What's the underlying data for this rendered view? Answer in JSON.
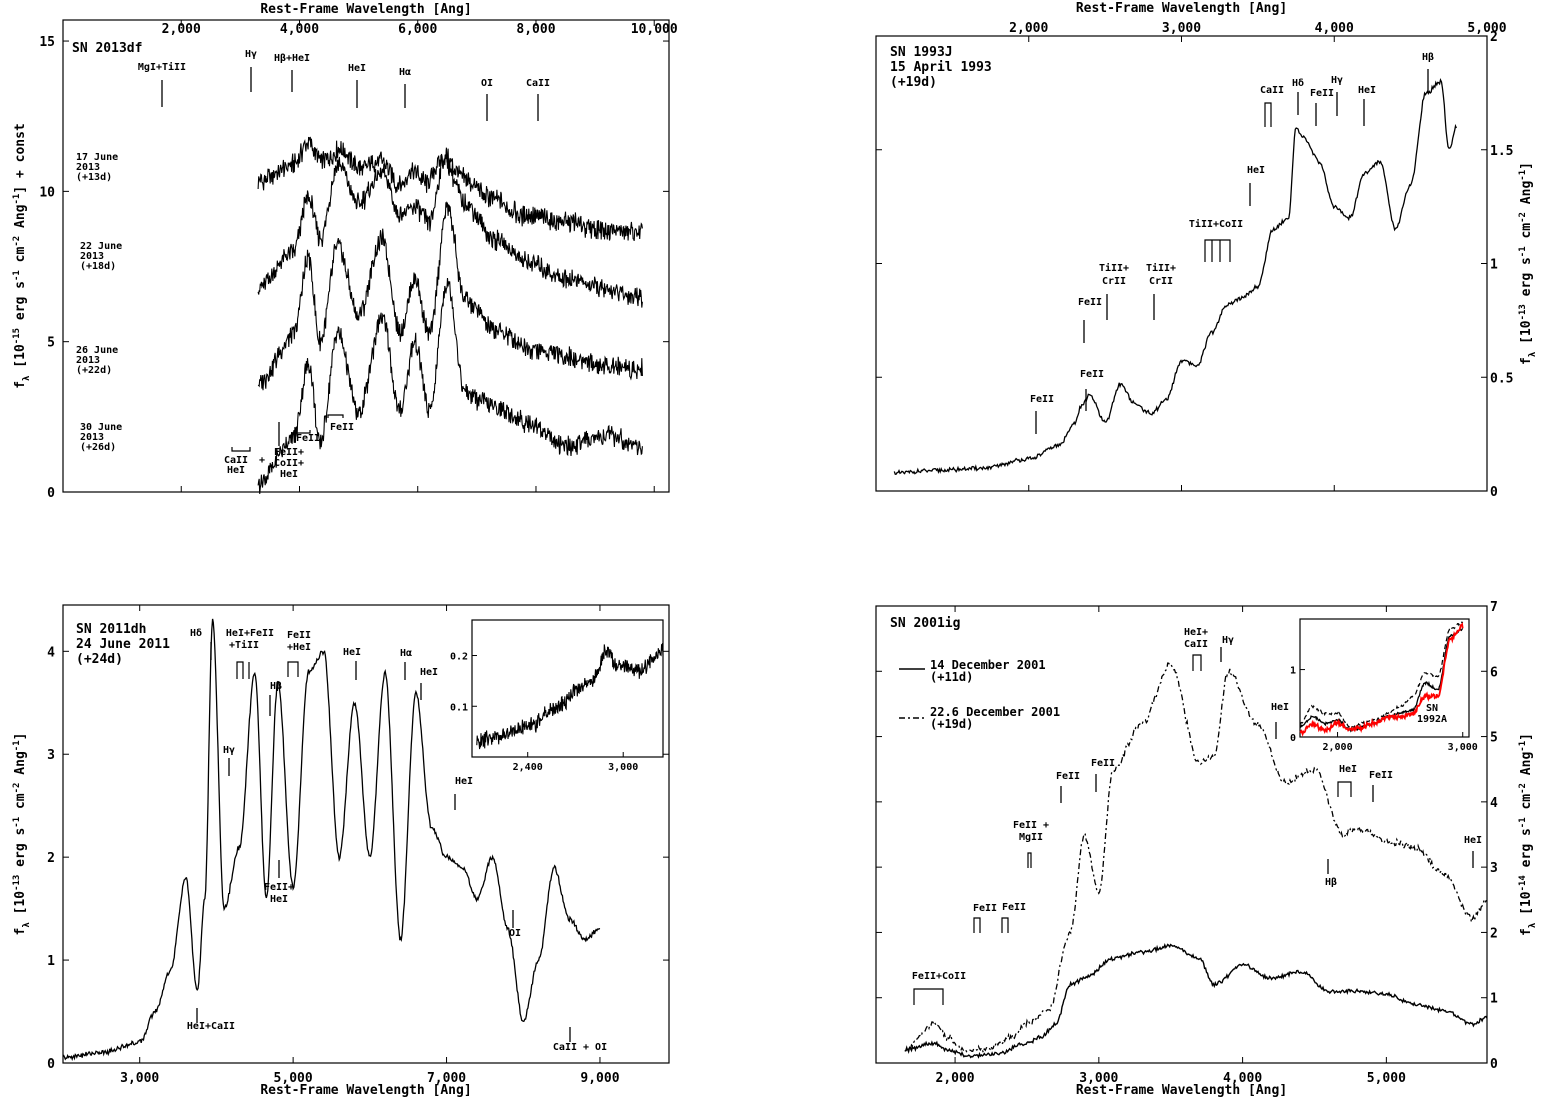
{
  "chart_data": [
    {
      "type": "line",
      "panel": "top-left",
      "label": "SN 2013df",
      "xlabel": "Rest-Frame Wavelength [Ang]",
      "ylabel": "f_λ [10^-15 erg s^-1 cm^-2 Ang^-1] + const",
      "xlim": [
        0,
        10250
      ],
      "ylim": [
        0,
        15.7
      ],
      "xtick_values": [
        2000,
        4000,
        6000,
        8000,
        10000
      ],
      "xtick_labels": [
        "2,000",
        "4,000",
        "6,000",
        "8,000",
        "10,000"
      ],
      "ytick_values": [
        0,
        5,
        10,
        15
      ],
      "ytick_labels": [
        "0",
        "5",
        "10",
        "15"
      ],
      "series": [
        {
          "name": "17 June 2013 (+13d)",
          "offset": 9.5,
          "x": [
            3300,
            3900,
            4150,
            4350,
            4700,
            5000,
            5400,
            5700,
            5900,
            6150,
            6450,
            6800,
            7200,
            7800,
            8500,
            9200,
            9800
          ],
          "y": [
            0.8,
            1.4,
            2.1,
            1.5,
            1.9,
            1.3,
            1.5,
            0.7,
            1.2,
            0.8,
            1.6,
            0.9,
            0.3,
            -0.3,
            -0.5,
            -0.8,
            -0.9
          ]
        },
        {
          "name": "22 June 2013 (+18d)",
          "offset": 6.0,
          "x": [
            3300,
            3900,
            4150,
            4350,
            4650,
            5000,
            5400,
            5700,
            5950,
            6200,
            6450,
            6800,
            7300,
            7900,
            8500,
            9200,
            9800
          ],
          "y": [
            0.8,
            2.0,
            3.8,
            2.4,
            4.9,
            3.6,
            4.6,
            3.2,
            3.5,
            3.0,
            5.1,
            3.6,
            2.4,
            1.6,
            1.1,
            0.7,
            0.5
          ]
        },
        {
          "name": "26 June 2013 (+22d)",
          "offset": 3.0,
          "x": [
            3300,
            3900,
            4150,
            4350,
            4650,
            5000,
            5400,
            5700,
            5950,
            6200,
            6500,
            6800,
            7300,
            7900,
            8500,
            9200,
            9800
          ],
          "y": [
            0.6,
            2.2,
            4.8,
            2.0,
            5.2,
            2.9,
            5.4,
            2.3,
            4.1,
            2.2,
            6.5,
            3.4,
            2.4,
            1.8,
            1.5,
            1.2,
            1.1
          ]
        },
        {
          "name": "30 June 2013 (+26d)",
          "offset": 0.0,
          "x": [
            3300,
            3900,
            4150,
            4350,
            4650,
            5000,
            5400,
            5700,
            5950,
            6200,
            6500,
            6800,
            7300,
            7900,
            8500,
            9200,
            9800
          ],
          "y": [
            0.3,
            1.8,
            4.3,
            1.6,
            5.3,
            2.6,
            5.8,
            2.7,
            5.0,
            2.7,
            7.0,
            3.3,
            2.8,
            2.3,
            1.5,
            1.9,
            1.5
          ]
        }
      ],
      "annotations": [
        "MgI+TiII",
        "Hγ",
        "Hβ+HeI",
        "HeI",
        "Hα",
        "OI",
        "CaII",
        "CaII HeI",
        "+",
        "FeII+ CoII+ HeI",
        "FeII",
        "FeII"
      ],
      "series_labels": [
        [
          "17 June",
          "2013",
          "(+13d)"
        ],
        [
          "22 June",
          "2013",
          "(+18d)"
        ],
        [
          "26 June",
          "2013",
          "(+22d)"
        ],
        [
          "30 June",
          "2013",
          "(+26d)"
        ]
      ]
    },
    {
      "type": "line",
      "panel": "top-right",
      "label": [
        "SN 1993J",
        "15 April 1993",
        "(+19d)"
      ],
      "xlabel": "Rest-Frame Wavelength [Ang]",
      "ylabel": "f_λ [10^-13 erg s^-1 cm^-2 Ang^-1]",
      "xlim": [
        1000,
        5000
      ],
      "ylim": [
        0,
        2.0
      ],
      "xtick_values": [
        2000,
        3000,
        4000,
        5000
      ],
      "xtick_labels": [
        "2,000",
        "3,000",
        "4,000",
        "5,000"
      ],
      "ytick_values": [
        0,
        0.5,
        1,
        1.5,
        2
      ],
      "ytick_labels": [
        "0",
        "0.5",
        "1",
        "1.5",
        "2"
      ],
      "series": [
        {
          "name": "15 April 1993",
          "x": [
            1120,
            1400,
            1700,
            2000,
            2200,
            2300,
            2350,
            2400,
            2500,
            2600,
            2700,
            2800,
            2900,
            3000,
            3100,
            3200,
            3300,
            3400,
            3500,
            3600,
            3700,
            3750,
            3800,
            3900,
            4000,
            4100,
            4200,
            4300,
            4400,
            4500,
            4600,
            4700,
            4750,
            4800
          ],
          "y": [
            0.08,
            0.09,
            0.1,
            0.14,
            0.2,
            0.3,
            0.38,
            0.42,
            0.3,
            0.47,
            0.38,
            0.34,
            0.4,
            0.57,
            0.55,
            0.7,
            0.82,
            0.85,
            0.9,
            1.15,
            1.2,
            1.6,
            1.55,
            1.45,
            1.25,
            1.2,
            1.4,
            1.45,
            1.15,
            1.35,
            1.75,
            1.8,
            1.5,
            1.6
          ]
        }
      ],
      "annotations": [
        "FeII",
        "FeII",
        "FeII",
        "TiII+ CrII",
        "TiII+ CrII",
        "TiII+CoII",
        "HeI",
        "CaII",
        "Hδ",
        "FeII",
        "Hγ",
        "HeI",
        "Hβ"
      ]
    },
    {
      "type": "line",
      "panel": "bottom-left",
      "label": [
        "SN 2011dh",
        "24 June 2011",
        "(+24d)"
      ],
      "xlabel": "Rest-Frame Wavelength [Ang]",
      "ylabel": "f_λ [10^-13 erg s^-1 cm^-2 Ang^-1]",
      "xlim": [
        2000,
        9900
      ],
      "ylim": [
        0,
        4.45
      ],
      "xtick_values": [
        3000,
        5000,
        7000,
        9000
      ],
      "xtick_labels": [
        "3,000",
        "5,000",
        "7,000",
        "9,000"
      ],
      "ytick_values": [
        0,
        1,
        2,
        3,
        4
      ],
      "ytick_labels": [
        "0",
        "1",
        "2",
        "3",
        "4"
      ],
      "series": [
        {
          "name": "24 June 2011",
          "x": [
            2000,
            2500,
            3000,
            3200,
            3400,
            3600,
            3750,
            3850,
            3950,
            4100,
            4300,
            4500,
            4650,
            4800,
            5000,
            5200,
            5400,
            5600,
            5800,
            6000,
            6200,
            6400,
            6600,
            6800,
            7000,
            7200,
            7400,
            7600,
            7800,
            8000,
            8200,
            8400,
            8600,
            8800,
            9000
          ],
          "y": [
            0.05,
            0.1,
            0.2,
            0.5,
            0.9,
            1.8,
            0.7,
            1.6,
            4.3,
            1.5,
            2.1,
            3.8,
            1.6,
            3.7,
            1.7,
            3.8,
            4.0,
            2.0,
            3.5,
            2.0,
            3.8,
            1.2,
            3.6,
            2.3,
            2.0,
            1.9,
            1.6,
            2.0,
            1.3,
            0.4,
            1.0,
            1.9,
            1.4,
            1.2,
            1.3
          ]
        }
      ],
      "annotations": [
        "Hδ",
        "HeI+FeII +TiII",
        "FeII +HeI",
        "Hβ",
        "Hγ",
        "FeII+ HeI",
        "HeI",
        "Hα",
        "HeI",
        "HeI",
        "OI",
        "HeI+CaII",
        "CaII + OI"
      ],
      "inset": {
        "xlim": [
          2050,
          3250
        ],
        "ylim": [
          0,
          0.27
        ],
        "xtick_values": [
          2400,
          3000
        ],
        "xtick_labels": [
          "2,400",
          "3,000"
        ],
        "ytick_values": [
          0.1,
          0.2
        ],
        "ytick_labels": [
          "0.1",
          "0.2"
        ],
        "x": [
          2080,
          2200,
          2400,
          2600,
          2700,
          2800,
          2900,
          2950,
          3000,
          3100,
          3250
        ],
        "y": [
          0.03,
          0.04,
          0.06,
          0.1,
          0.13,
          0.15,
          0.21,
          0.18,
          0.18,
          0.17,
          0.21
        ]
      }
    },
    {
      "type": "line",
      "panel": "bottom-right",
      "label": "SN 2001ig",
      "xlabel": "Rest-Frame Wavelength [Ang]",
      "ylabel": "f_λ [10^-14 erg s^-1 cm^-2 Ang^-1]",
      "xlim": [
        1450,
        5700
      ],
      "ylim": [
        0,
        7
      ],
      "xtick_values": [
        2000,
        3000,
        4000,
        5000
      ],
      "xtick_labels": [
        "2,000",
        "3,000",
        "4,000",
        "5,000"
      ],
      "ytick_values": [
        0,
        1,
        2,
        3,
        4,
        5,
        6,
        7
      ],
      "ytick_labels": [
        "0",
        "1",
        "2",
        "3",
        "4",
        "5",
        "6",
        "7"
      ],
      "series": [
        {
          "name": "14 December 2001",
          "name_line2": "(+11d)",
          "style": "solid",
          "x": [
            1650,
            1850,
            1950,
            2100,
            2300,
            2500,
            2600,
            2700,
            2800,
            2900,
            3100,
            3300,
            3500,
            3700,
            3800,
            4000,
            4200,
            4400,
            4600,
            4800,
            5000,
            5200,
            5400,
            5600,
            5700
          ],
          "y": [
            0.2,
            0.3,
            0.2,
            0.1,
            0.15,
            0.3,
            0.4,
            0.6,
            1.2,
            1.3,
            1.6,
            1.7,
            1.8,
            1.6,
            1.2,
            1.5,
            1.3,
            1.4,
            1.1,
            1.1,
            1.05,
            0.9,
            0.8,
            0.6,
            0.7
          ]
        },
        {
          "name": "22.6 December 2001",
          "name_line2": "(+19d)",
          "style": "dashed",
          "x": [
            1650,
            1850,
            1950,
            2050,
            2200,
            2400,
            2500,
            2650,
            2800,
            2900,
            3000,
            3100,
            3300,
            3500,
            3700,
            3800,
            3900,
            4100,
            4300,
            4500,
            4700,
            4800,
            5000,
            5200,
            5400,
            5600,
            5700
          ],
          "y": [
            0.2,
            0.6,
            0.4,
            0.2,
            0.2,
            0.4,
            0.6,
            0.8,
            2.0,
            3.5,
            2.6,
            4.5,
            5.2,
            6.1,
            4.6,
            4.7,
            6.0,
            5.2,
            4.3,
            4.5,
            3.5,
            3.6,
            3.4,
            3.3,
            2.9,
            2.2,
            2.5
          ]
        }
      ],
      "annotations": [
        "FeII+CoII",
        "FeII",
        "FeII",
        "FeII + MgII",
        "FeII",
        "FeII",
        "HeI+ CaII",
        "Hγ",
        "HeI",
        "HeI",
        "FeII",
        "Hβ",
        "HeI"
      ],
      "inset": {
        "label": "SN 1992A",
        "colors": {
          "sn1992a": "#ff0000"
        },
        "xlim": [
          1700,
          3050
        ],
        "ylim": [
          0,
          1.75
        ],
        "xtick_values": [
          2000,
          3000
        ],
        "xtick_labels": [
          "2,000",
          "3,000"
        ],
        "ytick_values": [
          0,
          1
        ],
        "ytick_labels": [
          "0",
          "1"
        ],
        "x1": [
          1700,
          1800,
          1900,
          2000,
          2100,
          2300,
          2400,
          2500,
          2600,
          2700,
          2800,
          2900,
          3000
        ],
        "y1": [
          0.15,
          0.3,
          0.2,
          0.25,
          0.1,
          0.2,
          0.3,
          0.35,
          0.4,
          0.8,
          0.7,
          1.5,
          1.6
        ],
        "x2": [
          1700,
          1800,
          1900,
          2000,
          2100,
          2300,
          2400,
          2500,
          2600,
          2700,
          2800,
          2900,
          3000
        ],
        "y2": [
          0.2,
          0.45,
          0.35,
          0.35,
          0.15,
          0.25,
          0.35,
          0.45,
          0.6,
          0.95,
          0.9,
          1.6,
          1.7
        ],
        "x3": [
          1700,
          1800,
          1900,
          2000,
          2100,
          2300,
          2400,
          2500,
          2600,
          2700,
          2800,
          2900,
          3000
        ],
        "y3": [
          0.05,
          0.2,
          0.1,
          0.2,
          0.1,
          0.2,
          0.3,
          0.3,
          0.35,
          0.6,
          0.6,
          1.45,
          1.65
        ]
      }
    }
  ]
}
